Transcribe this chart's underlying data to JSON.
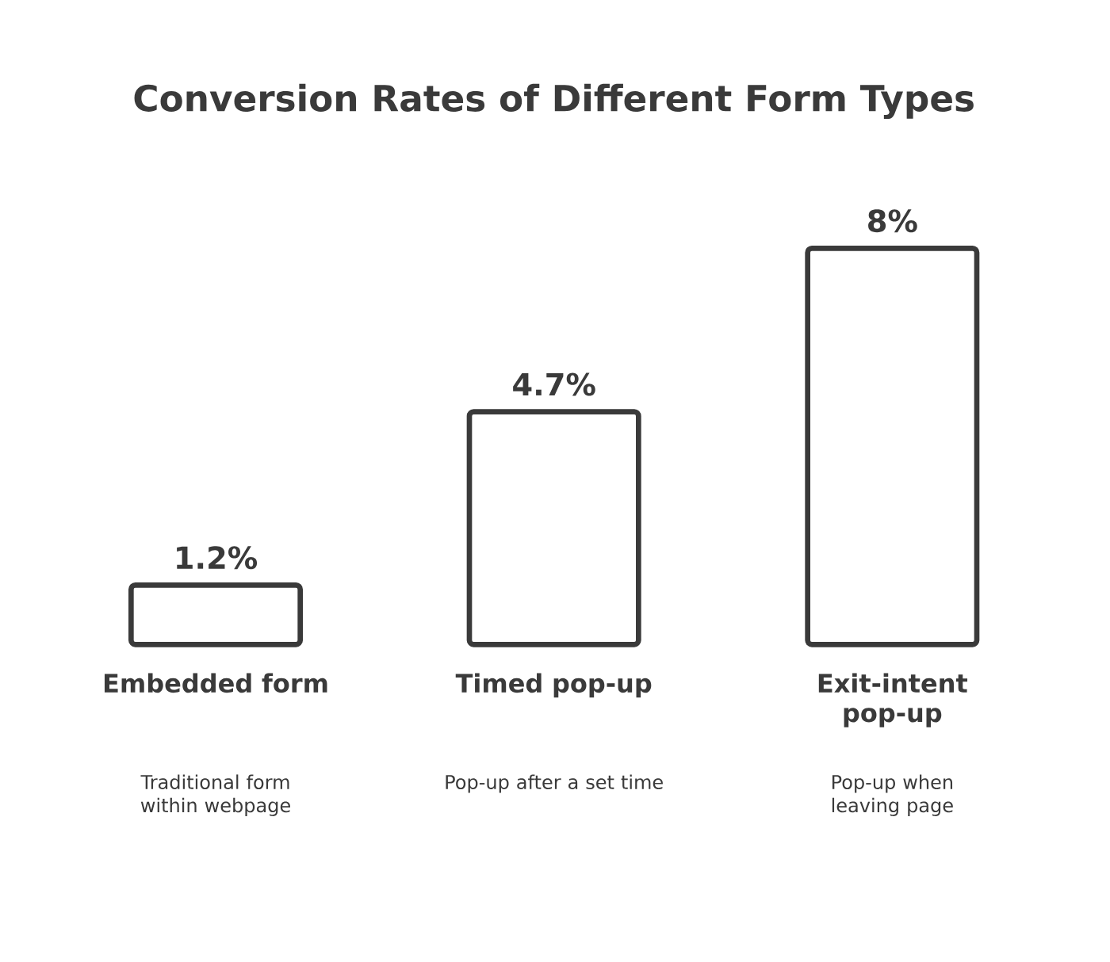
{
  "chart_data": {
    "type": "bar",
    "title": "Conversion Rates of Different Form Types",
    "categories": [
      "Embedded form",
      "Timed pop-up",
      "Exit-intent pop-up"
    ],
    "values": [
      1.2,
      4.7,
      8
    ],
    "value_labels": [
      "1.2%",
      "4.7%",
      "8%"
    ],
    "color": "#ffffff",
    "annotations": [
      "Traditional form within webpage",
      "Pop-up after a set time",
      "Pop-up when leaving page"
    ]
  }
}
